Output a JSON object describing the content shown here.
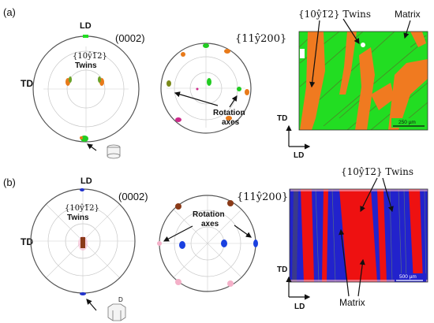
{
  "panel_a": {
    "letter": "(a)",
    "axis_top": "LD",
    "axis_left": "TD",
    "pf1_title": "(0002)",
    "pf2_title": "{11ŷ200}",
    "twin_plane": "{10ŷ1̅2}",
    "twin_word": "Twins",
    "rotation_line1": "Rotation",
    "rotation_line2": "axes",
    "map_twins_label": "{10ŷ1̅2} Twins",
    "map_matrix_label": "Matrix",
    "map_axis_td": "TD",
    "map_axis_ld": "LD",
    "scale": "250 µm"
  },
  "panel_b": {
    "letter": "(b)",
    "axis_top": "LD",
    "axis_left": "TD",
    "pf1_title": "(0002)",
    "pf2_title": "{11ŷ200}",
    "twin_plane": "{10ŷ1̅2}",
    "twin_word": "Twins",
    "rotation_line1": "Rotation",
    "rotation_line2": "axes",
    "map_twins_label": "{10ŷ1̅2} Twins",
    "map_matrix_label": "Matrix",
    "map_axis_td": "TD",
    "map_axis_ld": "LD",
    "scale": "500 µm",
    "crystal_label": "D"
  },
  "colors": {
    "matrix_a": "#22dd22",
    "twin_a": "#f07a20",
    "matrix_b": "#2222cc",
    "twin_b": "#ee1111",
    "circle": "#555555"
  }
}
